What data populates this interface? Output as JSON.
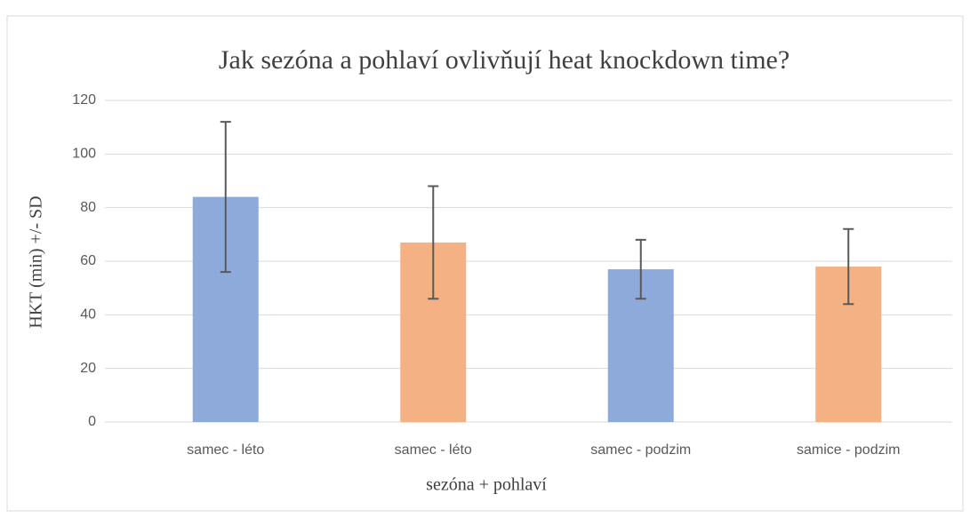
{
  "chart_data": {
    "type": "bar",
    "title": "Jak sezóna a pohlaví ovlivňují heat knockdown time?",
    "x_label": "sezóna + pohlaví",
    "y_label": "HKT (min) +/- SD",
    "categories": [
      "samec - léto",
      "samec - léto",
      "samec - podzim",
      "samice - podzim"
    ],
    "values": [
      84,
      67,
      57,
      58
    ],
    "errors": [
      28,
      21,
      11,
      14
    ],
    "colors": [
      "#8eaadb",
      "#f4b183",
      "#8eaadb",
      "#f4b183"
    ],
    "ylim": [
      0,
      120
    ],
    "yticks": [
      0,
      20,
      40,
      60,
      80,
      100,
      120
    ],
    "grid": true
  }
}
